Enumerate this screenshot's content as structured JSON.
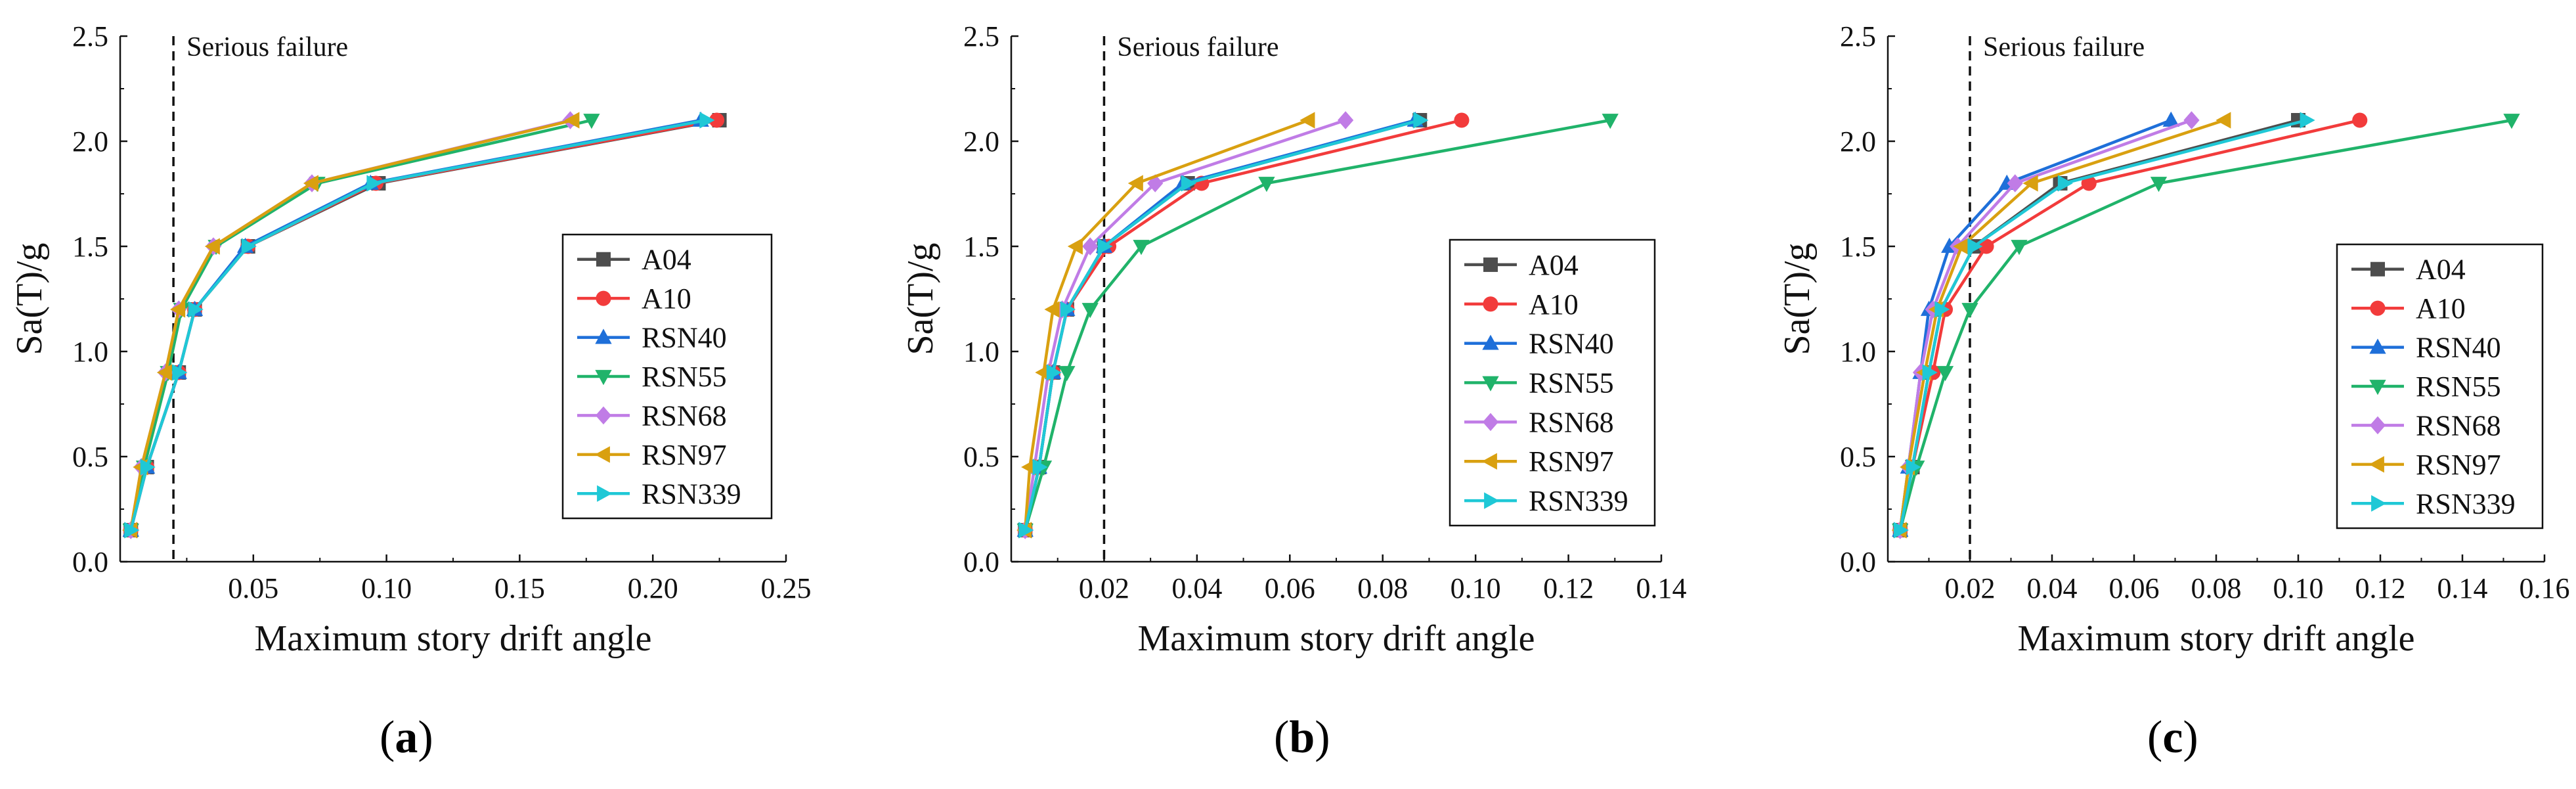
{
  "figure": {
    "panel_labels": [
      "a",
      "b",
      "c"
    ]
  },
  "series_names": [
    "A04",
    "A10",
    "RSN40",
    "RSN55",
    "RSN68",
    "RSN97",
    "RSN339"
  ],
  "series_colors": {
    "A04": "#4d4d4d",
    "A10": "#f23b3b",
    "RSN40": "#1e6fd9",
    "RSN55": "#20b36a",
    "RSN68": "#c07ce6",
    "RSN97": "#d9a010",
    "RSN339": "#1fc8d6"
  },
  "series_markers": {
    "A04": "square",
    "A10": "circle",
    "RSN40": "triangle-up",
    "RSN55": "triangle-down",
    "RSN68": "diamond",
    "RSN97": "triangle-left",
    "RSN339": "triangle-right"
  },
  "chart_data": [
    {
      "type": "line",
      "panel": "a",
      "xlabel": "Maximum story drift angle",
      "ylabel": "Sa(T)/g",
      "xlim": [
        0.0,
        0.25
      ],
      "ylim": [
        0.0,
        2.5
      ],
      "xticks": [
        0.05,
        0.1,
        0.15,
        0.2,
        0.25
      ],
      "xtick_labels": [
        "0.05",
        "0.10",
        "0.15",
        "0.20",
        "0.25"
      ],
      "yticks": [
        0.0,
        0.5,
        1.0,
        1.5,
        2.0,
        2.5
      ],
      "ytick_labels": [
        "0.0",
        "0.5",
        "1.0",
        "1.5",
        "2.0",
        "2.5"
      ],
      "reference_line": {
        "x": 0.02,
        "label": "Serious failure"
      },
      "legend_position": "lower-right",
      "y": [
        0.15,
        0.45,
        0.9,
        1.2,
        1.5,
        1.8,
        2.1
      ],
      "series": [
        {
          "name": "A04",
          "x": [
            0.004,
            0.01,
            0.022,
            0.028,
            0.048,
            0.097,
            0.225
          ]
        },
        {
          "name": "A10",
          "x": [
            0.004,
            0.01,
            0.022,
            0.028,
            0.048,
            0.096,
            0.224
          ]
        },
        {
          "name": "RSN40",
          "x": [
            0.004,
            0.01,
            0.022,
            0.028,
            0.047,
            0.094,
            0.218
          ]
        },
        {
          "name": "RSN55",
          "x": [
            0.004,
            0.009,
            0.018,
            0.023,
            0.036,
            0.074,
            0.177
          ]
        },
        {
          "name": "RSN68",
          "x": [
            0.004,
            0.008,
            0.017,
            0.022,
            0.035,
            0.072,
            0.169
          ]
        },
        {
          "name": "RSN97",
          "x": [
            0.004,
            0.008,
            0.017,
            0.022,
            0.035,
            0.072,
            0.17
          ]
        },
        {
          "name": "RSN339",
          "x": [
            0.004,
            0.01,
            0.022,
            0.028,
            0.048,
            0.095,
            0.22
          ]
        }
      ]
    },
    {
      "type": "line",
      "panel": "b",
      "xlabel": "Maximum story drift angle",
      "ylabel": "Sa(T)/g",
      "xlim": [
        0.0,
        0.14
      ],
      "ylim": [
        0.0,
        2.5
      ],
      "xticks": [
        0.02,
        0.04,
        0.06,
        0.08,
        0.1,
        0.12,
        0.14
      ],
      "xtick_labels": [
        "0.02",
        "0.04",
        "0.06",
        "0.08",
        "0.10",
        "0.12",
        "0.14"
      ],
      "yticks": [
        0.0,
        0.5,
        1.0,
        1.5,
        2.0,
        2.5
      ],
      "ytick_labels": [
        "0.0",
        "0.5",
        "1.0",
        "1.5",
        "2.0",
        "2.5"
      ],
      "reference_line": {
        "x": 0.02,
        "label": "Serious failure"
      },
      "legend_position": "lower-right",
      "y": [
        0.15,
        0.45,
        0.9,
        1.2,
        1.5,
        1.8,
        2.1
      ],
      "series": [
        {
          "name": "A04",
          "x": [
            0.003,
            0.006,
            0.009,
            0.012,
            0.02,
            0.038,
            0.088
          ]
        },
        {
          "name": "A10",
          "x": [
            0.003,
            0.006,
            0.009,
            0.012,
            0.021,
            0.041,
            0.097
          ]
        },
        {
          "name": "RSN40",
          "x": [
            0.003,
            0.006,
            0.009,
            0.012,
            0.02,
            0.037,
            0.087
          ]
        },
        {
          "name": "RSN55",
          "x": [
            0.003,
            0.007,
            0.012,
            0.017,
            0.028,
            0.055,
            0.129
          ]
        },
        {
          "name": "RSN68",
          "x": [
            0.003,
            0.005,
            0.008,
            0.011,
            0.017,
            0.031,
            0.072
          ]
        },
        {
          "name": "RSN97",
          "x": [
            0.003,
            0.004,
            0.007,
            0.009,
            0.014,
            0.027,
            0.064
          ]
        },
        {
          "name": "RSN339",
          "x": [
            0.003,
            0.006,
            0.009,
            0.012,
            0.02,
            0.038,
            0.088
          ]
        }
      ]
    },
    {
      "type": "line",
      "panel": "c",
      "xlabel": "Maximum story drift angle",
      "ylabel": "Sa(T)/g",
      "xlim": [
        0.0,
        0.16
      ],
      "ylim": [
        0.0,
        2.5
      ],
      "xticks": [
        0.02,
        0.04,
        0.06,
        0.08,
        0.1,
        0.12,
        0.14,
        0.16
      ],
      "xtick_labels": [
        "0.02",
        "0.04",
        "0.06",
        "0.08",
        "0.10",
        "0.12",
        "0.14",
        "0.16"
      ],
      "yticks": [
        0.0,
        0.5,
        1.0,
        1.5,
        2.0,
        2.5
      ],
      "ytick_labels": [
        "0.0",
        "0.5",
        "1.0",
        "1.5",
        "2.0",
        "2.5"
      ],
      "reference_line": {
        "x": 0.02,
        "label": "Serious failure"
      },
      "legend_position": "lower-right",
      "y": [
        0.15,
        0.45,
        0.9,
        1.2,
        1.5,
        1.8,
        2.1
      ],
      "series": [
        {
          "name": "A04",
          "x": [
            0.003,
            0.006,
            0.01,
            0.013,
            0.021,
            0.042,
            0.1
          ]
        },
        {
          "name": "A10",
          "x": [
            0.003,
            0.006,
            0.011,
            0.014,
            0.024,
            0.049,
            0.115
          ]
        },
        {
          "name": "RSN40",
          "x": [
            0.003,
            0.005,
            0.008,
            0.01,
            0.015,
            0.029,
            0.069
          ]
        },
        {
          "name": "RSN55",
          "x": [
            0.003,
            0.007,
            0.014,
            0.02,
            0.032,
            0.066,
            0.152
          ]
        },
        {
          "name": "RSN68",
          "x": [
            0.003,
            0.005,
            0.008,
            0.011,
            0.017,
            0.031,
            0.074
          ]
        },
        {
          "name": "RSN97",
          "x": [
            0.003,
            0.005,
            0.009,
            0.012,
            0.018,
            0.035,
            0.082
          ]
        },
        {
          "name": "RSN339",
          "x": [
            0.003,
            0.006,
            0.01,
            0.013,
            0.021,
            0.043,
            0.102
          ]
        }
      ]
    }
  ]
}
